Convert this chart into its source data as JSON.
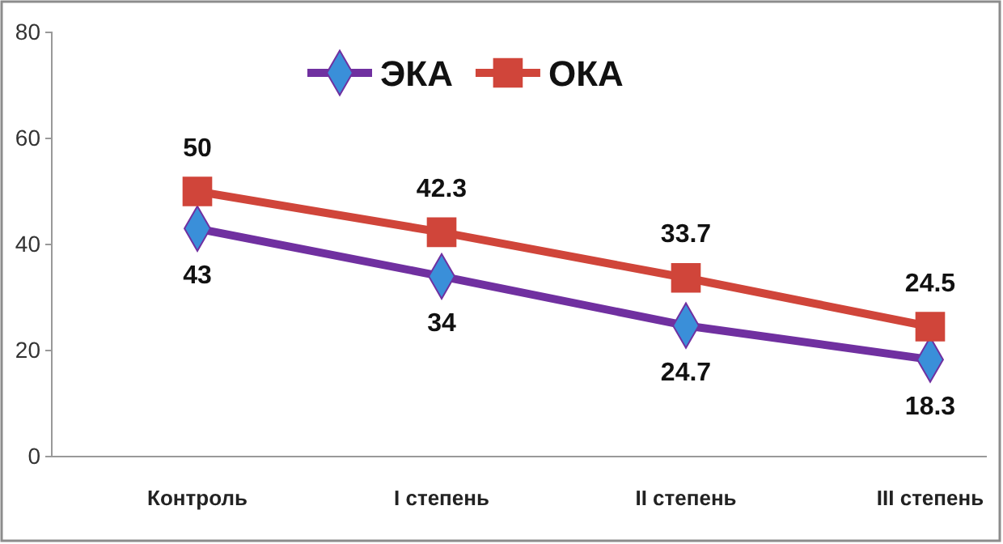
{
  "chart_data": {
    "type": "line",
    "categories": [
      "Контроль",
      "I степень",
      "II степень",
      "III степень"
    ],
    "series": [
      {
        "name": "ЭКА",
        "color": "#7030a0",
        "marker": "diamond",
        "values": [
          43,
          34,
          24.7,
          18.3
        ]
      },
      {
        "name": "ОКА",
        "color": "#d0453a",
        "marker": "square",
        "values": [
          50,
          42.3,
          33.7,
          24.5
        ]
      }
    ],
    "ylim": [
      0,
      80
    ],
    "yticks": [
      0,
      20,
      40,
      60,
      80
    ],
    "grid": false,
    "legend": "top",
    "data_labels": true
  }
}
